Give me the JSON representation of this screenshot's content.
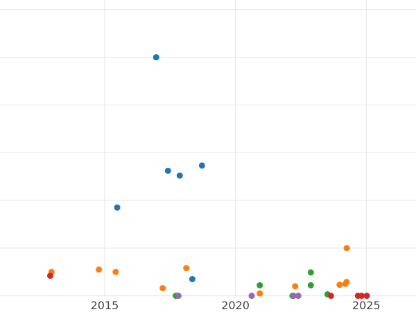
{
  "chart_data": {
    "type": "scatter",
    "title": "",
    "xlabel": "",
    "ylabel": "",
    "grid": true,
    "x_ticks": [
      "2015",
      "2020",
      "2025"
    ],
    "x_tick_values": [
      2015,
      2020,
      2025
    ],
    "xlim": [
      2011,
      2026.9
    ],
    "ylim": [
      -0.02,
      6.2
    ],
    "y_grid_values": [
      0,
      1,
      2,
      3,
      4,
      5,
      6
    ],
    "series": [
      {
        "color": "#1f77b4",
        "points": [
          {
            "x": 2016.97,
            "y": 5.0
          },
          {
            "x": 2015.48,
            "y": 1.85
          },
          {
            "x": 2017.42,
            "y": 2.62
          },
          {
            "x": 2017.87,
            "y": 2.52
          },
          {
            "x": 2018.72,
            "y": 2.73
          },
          {
            "x": 2018.35,
            "y": 0.35
          }
        ]
      },
      {
        "color": "#ff7f0e",
        "points": [
          {
            "x": 2012.97,
            "y": 0.5
          },
          {
            "x": 2014.78,
            "y": 0.55
          },
          {
            "x": 2015.42,
            "y": 0.5
          },
          {
            "x": 2017.22,
            "y": 0.16
          },
          {
            "x": 2018.12,
            "y": 0.58
          },
          {
            "x": 2020.93,
            "y": 0.05
          },
          {
            "x": 2022.28,
            "y": 0.2
          },
          {
            "x": 2023.98,
            "y": 0.23
          },
          {
            "x": 2024.2,
            "y": 0.25
          },
          {
            "x": 2024.25,
            "y": 0.29
          },
          {
            "x": 2024.25,
            "y": 1.0
          }
        ]
      },
      {
        "color": "#2ca02c",
        "points": [
          {
            "x": 2017.72,
            "y": 0.0
          },
          {
            "x": 2020.93,
            "y": 0.22
          },
          {
            "x": 2022.18,
            "y": 0.0
          },
          {
            "x": 2022.88,
            "y": 0.22
          },
          {
            "x": 2022.88,
            "y": 0.49
          },
          {
            "x": 2023.52,
            "y": 0.03
          }
        ]
      },
      {
        "color": "#d62728",
        "points": [
          {
            "x": 2012.92,
            "y": 0.42
          },
          {
            "x": 2023.65,
            "y": 0.0
          },
          {
            "x": 2024.68,
            "y": 0.0
          },
          {
            "x": 2024.82,
            "y": 0.0
          },
          {
            "x": 2025.02,
            "y": 0.0
          }
        ]
      },
      {
        "color": "#9467bd",
        "points": [
          {
            "x": 2017.82,
            "y": 0.0
          },
          {
            "x": 2020.62,
            "y": 0.0
          },
          {
            "x": 2022.22,
            "y": 0.0
          },
          {
            "x": 2022.4,
            "y": 0.0
          }
        ]
      }
    ]
  }
}
